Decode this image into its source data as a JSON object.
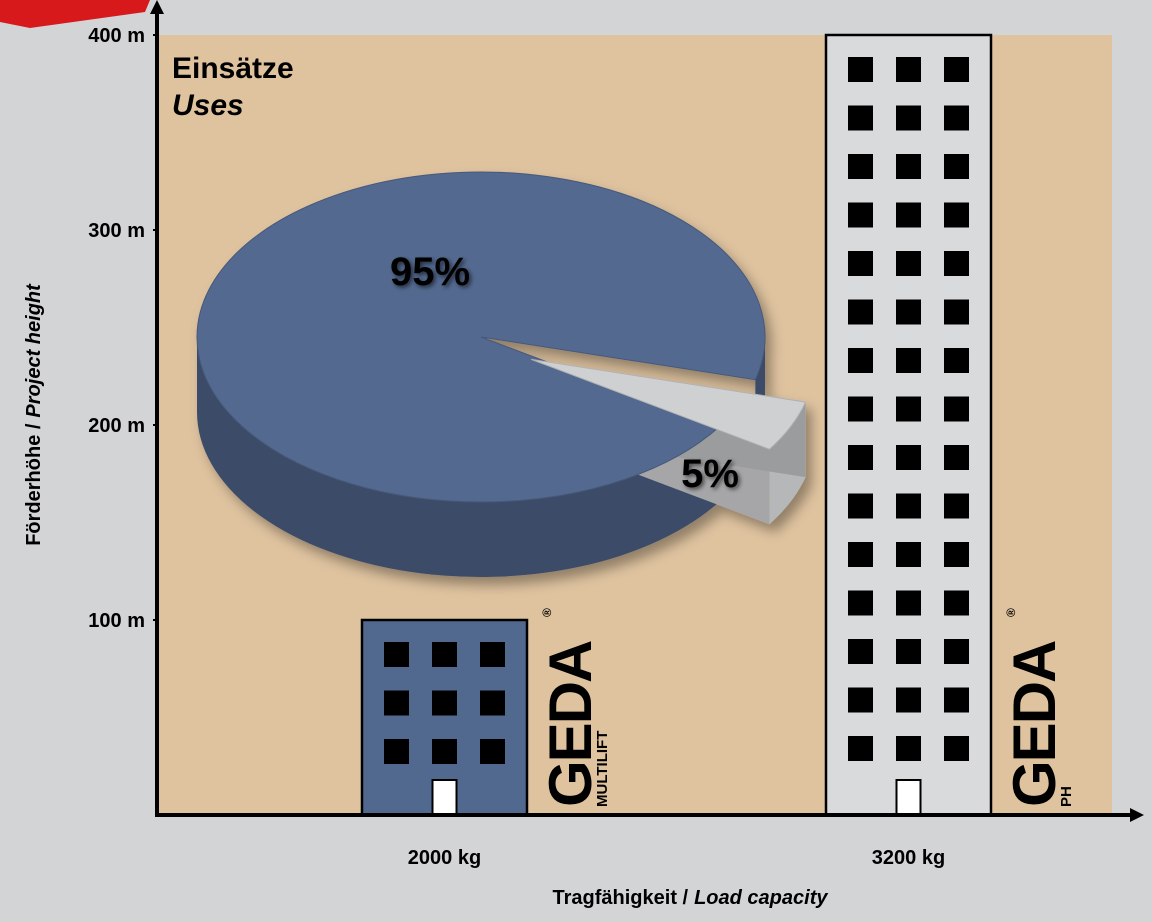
{
  "chart_data": [
    {
      "type": "bar",
      "categories": [
        "2000 kg",
        "3200 kg"
      ],
      "values": [
        100,
        400
      ],
      "colors": [
        "#52698f",
        "#d9dadc"
      ],
      "ylim": [
        0,
        400
      ],
      "yticks": [
        {
          "value": 100,
          "label": "100 m"
        },
        {
          "value": 200,
          "label": "200 m"
        },
        {
          "value": 300,
          "label": "300 m"
        },
        {
          "value": 400,
          "label": "400 m"
        }
      ],
      "xlabel": {
        "de": "Tragfähigkeit /",
        "en": "Load capacity"
      },
      "ylabel": {
        "de": "Förderhöhe /",
        "en": "Project height"
      },
      "brands": [
        {
          "name": "GEDA",
          "model": "MULTILIFT",
          "mark": "®"
        },
        {
          "name": "GEDA",
          "model": "PH",
          "mark": "®"
        }
      ]
    },
    {
      "type": "pie",
      "title": "Einsätze",
      "subtitle": "Uses",
      "values": [
        95,
        5
      ],
      "value_labels": [
        "95%",
        "5%"
      ],
      "colors": [
        "#52698f",
        "#cfd0d2"
      ]
    }
  ]
}
